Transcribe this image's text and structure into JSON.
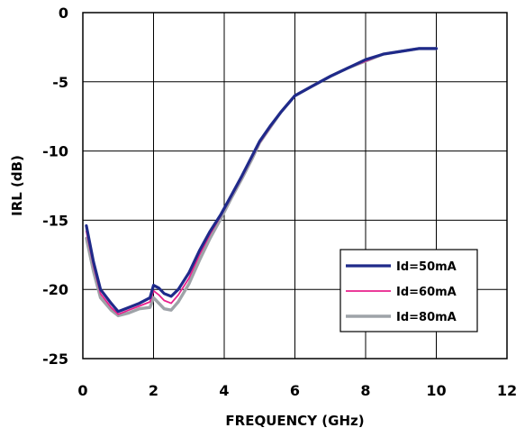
{
  "chart_data": {
    "type": "line",
    "title": "",
    "xlabel": "FREQUENCY (GHz)",
    "ylabel": "IRL (dB)",
    "xlim": [
      0,
      12
    ],
    "ylim": [
      -25,
      0
    ],
    "xticks": [
      0,
      2,
      4,
      6,
      8,
      10,
      12
    ],
    "yticks": [
      0,
      -5,
      -10,
      -15,
      -20,
      -25
    ],
    "xtick_labels": [
      "0",
      "2",
      "4",
      "6",
      "8",
      "10",
      "12"
    ],
    "ytick_labels": [
      "0",
      "-5",
      "-10",
      "-15",
      "-20",
      "-25"
    ],
    "grid": true,
    "legend_position": "lower-right",
    "series": [
      {
        "name": "Id=50mA",
        "color": "#1f2a8a",
        "x": [
          0.1,
          0.3,
          0.5,
          0.8,
          1.0,
          1.3,
          1.6,
          1.9,
          2.0,
          2.15,
          2.3,
          2.5,
          2.7,
          3.0,
          3.3,
          3.6,
          3.9,
          4.2,
          4.5,
          4.8,
          5.0,
          5.3,
          5.6,
          6.0,
          6.5,
          7.0,
          7.5,
          8.0,
          8.5,
          9.0,
          9.5,
          10.0
        ],
        "y": [
          -15.4,
          -18.0,
          -20.0,
          -21.0,
          -21.6,
          -21.3,
          -21.0,
          -20.6,
          -19.7,
          -19.9,
          -20.3,
          -20.5,
          -20.0,
          -18.8,
          -17.2,
          -15.8,
          -14.6,
          -13.2,
          -11.8,
          -10.3,
          -9.3,
          -8.2,
          -7.2,
          -6.0,
          -5.3,
          -4.6,
          -4.0,
          -3.4,
          -3.0,
          -2.8,
          -2.6,
          -2.6
        ]
      },
      {
        "name": "Id=60mA",
        "color": "#e8208c",
        "x": [
          0.1,
          0.3,
          0.5,
          0.8,
          1.0,
          1.3,
          1.6,
          1.9,
          2.0,
          2.15,
          2.3,
          2.5,
          2.7,
          3.0,
          3.3,
          3.6,
          3.9,
          4.2,
          4.5,
          4.8,
          5.0,
          5.3,
          5.6,
          6.0,
          6.5,
          7.0,
          7.5,
          8.0,
          8.5,
          9.0,
          9.5,
          10.0
        ],
        "y": [
          -15.8,
          -18.3,
          -20.3,
          -21.3,
          -21.8,
          -21.5,
          -21.2,
          -20.9,
          -20.1,
          -20.4,
          -20.8,
          -21.0,
          -20.4,
          -19.2,
          -17.5,
          -16.0,
          -14.7,
          -13.3,
          -11.9,
          -10.4,
          -9.4,
          -8.3,
          -7.2,
          -6.0,
          -5.3,
          -4.6,
          -4.0,
          -3.5,
          -3.0,
          -2.8,
          -2.6,
          -2.6
        ]
      },
      {
        "name": "Id=80mA",
        "color": "#9ea3a8",
        "x": [
          0.1,
          0.3,
          0.5,
          0.8,
          1.0,
          1.3,
          1.6,
          1.9,
          2.0,
          2.15,
          2.3,
          2.5,
          2.7,
          3.0,
          3.3,
          3.6,
          3.9,
          4.2,
          4.5,
          4.8,
          5.0,
          5.3,
          5.6,
          6.0,
          6.5,
          7.0,
          7.5,
          8.0,
          8.5,
          9.0,
          9.5,
          10.0
        ],
        "y": [
          -16.3,
          -18.7,
          -20.6,
          -21.5,
          -21.9,
          -21.7,
          -21.4,
          -21.3,
          -20.6,
          -21.0,
          -21.4,
          -21.5,
          -20.9,
          -19.6,
          -17.9,
          -16.3,
          -14.9,
          -13.4,
          -12.0,
          -10.5,
          -9.4,
          -8.3,
          -7.2,
          -6.0,
          -5.3,
          -4.6,
          -4.0,
          -3.5,
          -3.0,
          -2.8,
          -2.6,
          -2.6
        ]
      }
    ]
  }
}
